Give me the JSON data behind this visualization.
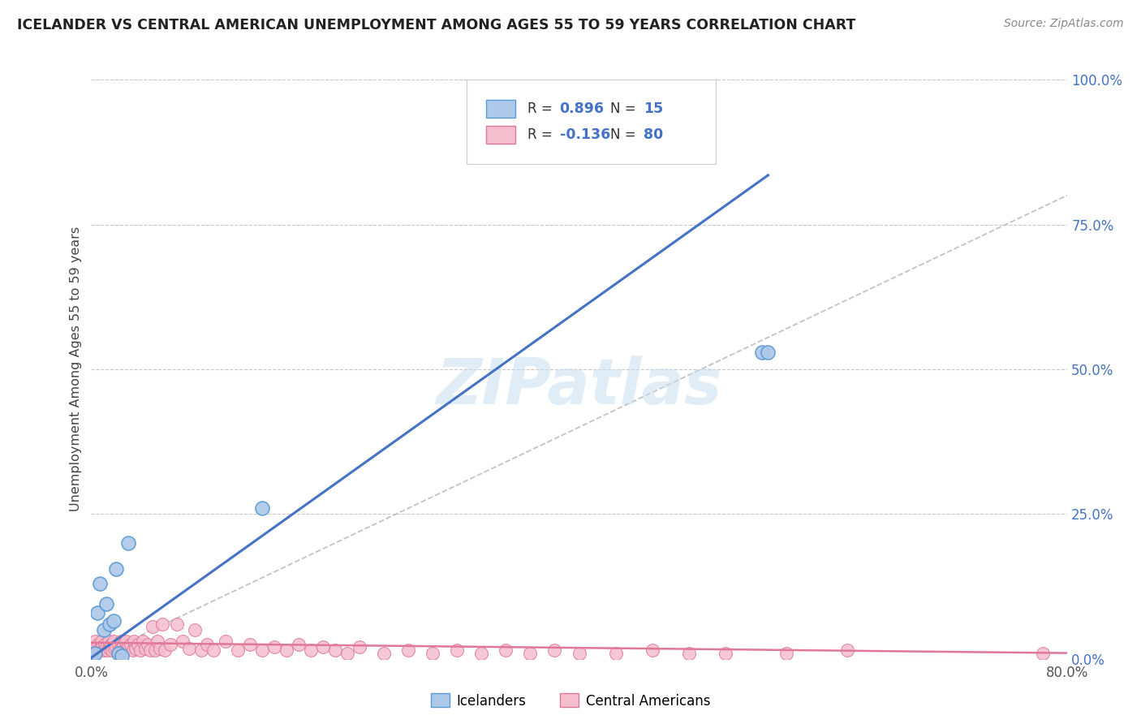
{
  "title": "ICELANDER VS CENTRAL AMERICAN UNEMPLOYMENT AMONG AGES 55 TO 59 YEARS CORRELATION CHART",
  "source": "Source: ZipAtlas.com",
  "ylabel": "Unemployment Among Ages 55 to 59 years",
  "xlim": [
    0.0,
    0.8
  ],
  "ylim": [
    0.0,
    1.0
  ],
  "xticks": [
    0.0,
    0.2,
    0.4,
    0.6,
    0.8
  ],
  "xtick_labels": [
    "0.0%",
    "",
    "",
    "",
    "80.0%"
  ],
  "yticks": [
    0.0,
    0.25,
    0.5,
    0.75,
    1.0
  ],
  "ytick_labels_right": [
    "0.0%",
    "25.0%",
    "50.0%",
    "75.0%",
    "100.0%"
  ],
  "background_color": "#ffffff",
  "grid_color": "#c8c8c8",
  "ic_fill": "#adc8e8",
  "ic_edge": "#5b9bd5",
  "ca_fill": "#f5bece",
  "ca_edge": "#e07898",
  "blue_line_color": "#4472c4",
  "pink_line_color": "#e07898",
  "ref_line_color": "#b8b8b8",
  "title_color": "#222222",
  "source_color": "#888888",
  "right_axis_color": "#4472c4",
  "legend_text_color": "#333333",
  "legend_val_color": "#4472c4",
  "icelanders_R": "0.896",
  "icelanders_N": "15",
  "ca_R": "-0.136",
  "ca_N": "80",
  "watermark": "ZIPatlas",
  "ic_x": [
    0.0,
    0.003,
    0.005,
    0.007,
    0.01,
    0.012,
    0.015,
    0.018,
    0.02,
    0.022,
    0.025,
    0.03,
    0.14,
    0.55,
    0.555
  ],
  "ic_y": [
    0.0,
    0.01,
    0.08,
    0.13,
    0.05,
    0.095,
    0.06,
    0.065,
    0.155,
    0.01,
    0.005,
    0.2,
    0.26,
    0.53,
    0.53
  ],
  "blue_line_x": [
    0.0,
    0.555
  ],
  "blue_line_y": [
    0.002,
    0.835
  ],
  "pink_line_x": [
    0.0,
    0.8
  ],
  "pink_line_y": [
    0.028,
    0.01
  ],
  "ca_x": [
    0.0,
    0.002,
    0.003,
    0.004,
    0.005,
    0.006,
    0.007,
    0.008,
    0.009,
    0.01,
    0.011,
    0.012,
    0.013,
    0.014,
    0.015,
    0.016,
    0.017,
    0.018,
    0.019,
    0.02,
    0.022,
    0.023,
    0.024,
    0.025,
    0.026,
    0.027,
    0.028,
    0.03,
    0.032,
    0.034,
    0.035,
    0.036,
    0.038,
    0.04,
    0.042,
    0.044,
    0.046,
    0.048,
    0.05,
    0.052,
    0.054,
    0.056,
    0.058,
    0.06,
    0.065,
    0.07,
    0.075,
    0.08,
    0.085,
    0.09,
    0.095,
    0.1,
    0.11,
    0.12,
    0.13,
    0.14,
    0.15,
    0.16,
    0.17,
    0.18,
    0.19,
    0.2,
    0.21,
    0.22,
    0.24,
    0.26,
    0.28,
    0.3,
    0.32,
    0.34,
    0.36,
    0.38,
    0.4,
    0.43,
    0.46,
    0.49,
    0.52,
    0.57,
    0.62,
    0.78
  ],
  "ca_y": [
    0.018,
    0.012,
    0.03,
    0.02,
    0.015,
    0.025,
    0.018,
    0.03,
    0.02,
    0.015,
    0.025,
    0.02,
    0.015,
    0.03,
    0.018,
    0.025,
    0.015,
    0.03,
    0.018,
    0.02,
    0.025,
    0.015,
    0.03,
    0.018,
    0.025,
    0.015,
    0.03,
    0.02,
    0.025,
    0.015,
    0.03,
    0.018,
    0.025,
    0.015,
    0.03,
    0.018,
    0.025,
    0.015,
    0.055,
    0.015,
    0.03,
    0.018,
    0.06,
    0.015,
    0.025,
    0.06,
    0.03,
    0.018,
    0.05,
    0.015,
    0.025,
    0.015,
    0.03,
    0.015,
    0.025,
    0.015,
    0.02,
    0.015,
    0.025,
    0.015,
    0.02,
    0.015,
    0.01,
    0.02,
    0.01,
    0.015,
    0.01,
    0.015,
    0.01,
    0.015,
    0.01,
    0.015,
    0.01,
    0.01,
    0.015,
    0.01,
    0.01,
    0.01,
    0.015,
    0.01
  ]
}
